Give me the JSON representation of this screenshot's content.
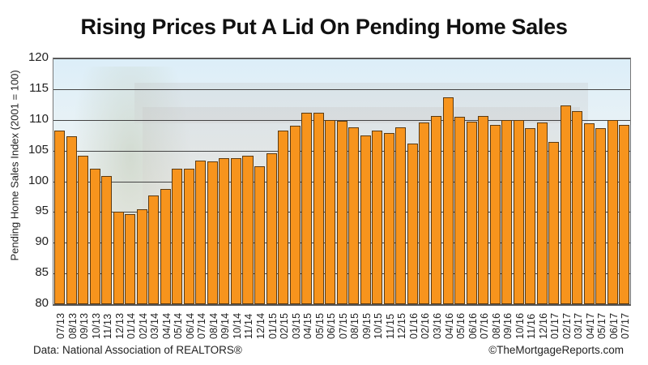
{
  "header": {
    "title": "Rising Prices Put A Lid On Pending Home Sales"
  },
  "footer": {
    "source": "Data: National Association of REALTORS®",
    "credit": "©TheMortgageReports.com"
  },
  "colors": {
    "bar_fill": "#f7941d",
    "bar_outline": "#5b3a12",
    "gridline": "#444444"
  },
  "chart_data": {
    "type": "bar",
    "title": "Rising Prices Put A Lid On Pending Home Sales",
    "xlabel": "",
    "ylabel": "Pending Home Sales Index (2001 = 100)",
    "ylim": [
      80,
      120
    ],
    "yticks": [
      80,
      85,
      90,
      95,
      100,
      105,
      110,
      115,
      120
    ],
    "grid": true,
    "legend": null,
    "source_note": "Data: National Association of REALTORS®",
    "credit": "©TheMortgageReports.com",
    "categories": [
      "07/13",
      "08/13",
      "09/13",
      "10/13",
      "11/13",
      "12/13",
      "01/14",
      "02/14",
      "03/14",
      "04/14",
      "05/14",
      "06/14",
      "07/14",
      "08/14",
      "09/14",
      "10/14",
      "11/14",
      "12/14",
      "01/15",
      "02/15",
      "03/15",
      "04/15",
      "05/15",
      "06/15",
      "07/15",
      "08/15",
      "09/15",
      "10/15",
      "11/15",
      "12/15",
      "01/16",
      "02/16",
      "03/16",
      "04/16",
      "05/16",
      "06/16",
      "07/16",
      "08/16",
      "09/16",
      "10/16",
      "11/16",
      "12/16",
      "01/17",
      "02/17",
      "03/17",
      "04/17",
      "05/17",
      "06/17",
      "07/17"
    ],
    "values": [
      108.3,
      107.3,
      104.1,
      102.0,
      100.8,
      95.0,
      94.7,
      95.5,
      97.7,
      98.7,
      102.0,
      102.0,
      103.4,
      103.2,
      103.8,
      103.8,
      104.2,
      102.5,
      104.5,
      108.3,
      109.1,
      111.2,
      111.1,
      110.0,
      109.9,
      108.8,
      107.5,
      108.2,
      107.8,
      108.8,
      106.1,
      109.6,
      110.6,
      113.7,
      110.5,
      109.7,
      110.6,
      109.2,
      110.0,
      110.0,
      108.7,
      109.6,
      106.4,
      112.4,
      111.4,
      109.5,
      108.7,
      110.0,
      109.2
    ]
  }
}
